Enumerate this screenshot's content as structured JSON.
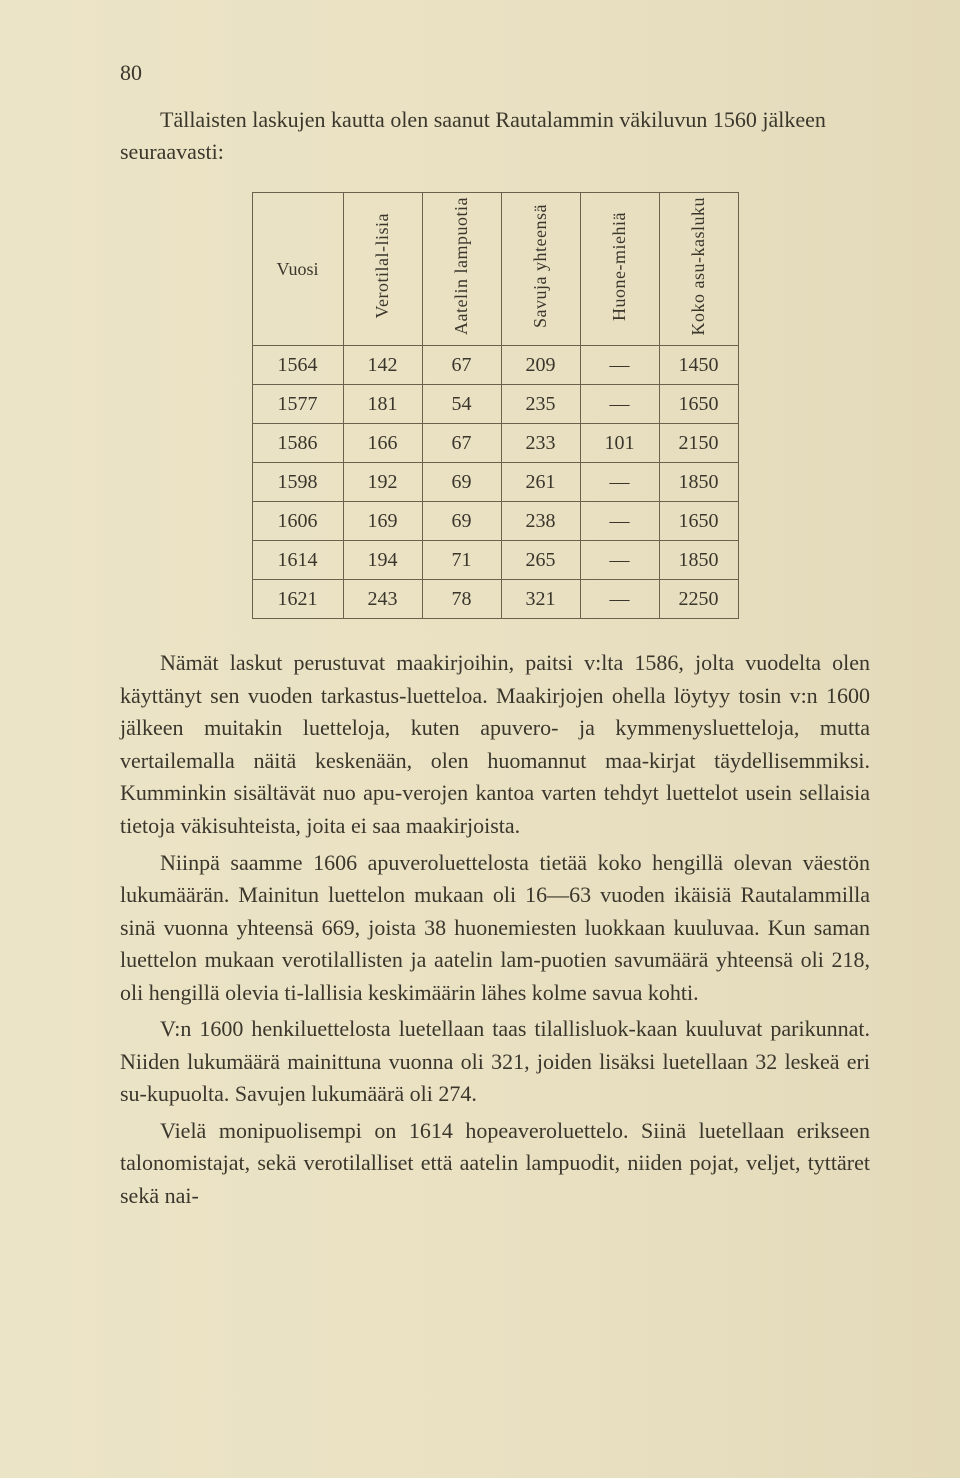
{
  "page_number": "80",
  "intro": "Tällaisten laskujen kautta olen saanut Rautalammin väkiluvun 1560 jälkeen seuraavasti:",
  "table": {
    "headers": {
      "col0": "Vuosi",
      "col1": "Verotilal-lisia",
      "col2": "Aatelin lampuotia",
      "col3": "Savuja yhteensä",
      "col4": "Huone-miehiä",
      "col5": "Koko asu-kasluku"
    },
    "rows": [
      {
        "c0": "1564",
        "c1": "142",
        "c2": "67",
        "c3": "209",
        "c4": "—",
        "c5": "1450"
      },
      {
        "c0": "1577",
        "c1": "181",
        "c2": "54",
        "c3": "235",
        "c4": "—",
        "c5": "1650"
      },
      {
        "c0": "1586",
        "c1": "166",
        "c2": "67",
        "c3": "233",
        "c4": "101",
        "c5": "2150"
      },
      {
        "c0": "1598",
        "c1": "192",
        "c2": "69",
        "c3": "261",
        "c4": "—",
        "c5": "1850"
      },
      {
        "c0": "1606",
        "c1": "169",
        "c2": "69",
        "c3": "238",
        "c4": "—",
        "c5": "1650"
      },
      {
        "c0": "1614",
        "c1": "194",
        "c2": "71",
        "c3": "265",
        "c4": "—",
        "c5": "1850"
      },
      {
        "c0": "1621",
        "c1": "243",
        "c2": "78",
        "c3": "321",
        "c4": "—",
        "c5": "2250"
      }
    ]
  },
  "paragraphs": {
    "p1": "Nämät laskut perustuvat maakirjoihin, paitsi v:lta 1586, jolta vuodelta olen käyttänyt sen vuoden tarkastus-luetteloa. Maakirjojen ohella löytyy tosin v:n 1600 jälkeen muitakin luetteloja, kuten apuvero- ja kymmenysluetteloja, mutta vertailemalla näitä keskenään, olen huomannut maa-kirjat täydellisemmiksi. Kumminkin sisältävät nuo apu-verojen kantoa varten tehdyt luettelot usein sellaisia tietoja väkisuhteista, joita ei saa maakirjoista.",
    "p2": "Niinpä saamme 1606 apuveroluettelosta tietää koko hengillä olevan väestön lukumäärän. Mainitun luettelon mukaan oli 16—63 vuoden ikäisiä Rautalammilla sinä vuonna yhteensä 669, joista 38 huonemiesten luokkaan kuuluvaa. Kun saman luettelon mukaan verotilallisten ja aatelin lam-puotien savumäärä yhteensä oli 218, oli hengillä olevia ti-lallisia keskimäärin lähes kolme savua kohti.",
    "p3": "V:n 1600 henkiluettelosta luetellaan taas tilallisluok-kaan kuuluvat parikunnat. Niiden lukumäärä mainittuna vuonna oli 321, joiden lisäksi luetellaan 32 leskeä eri su-kupuolta. Savujen lukumäärä oli 274.",
    "p4": "Vielä monipuolisempi on 1614 hopeaveroluettelo. Siinä luetellaan erikseen talonomistajat, sekä verotilalliset että aatelin lampuodit, niiden pojat, veljet, tyttäret sekä nai-"
  }
}
